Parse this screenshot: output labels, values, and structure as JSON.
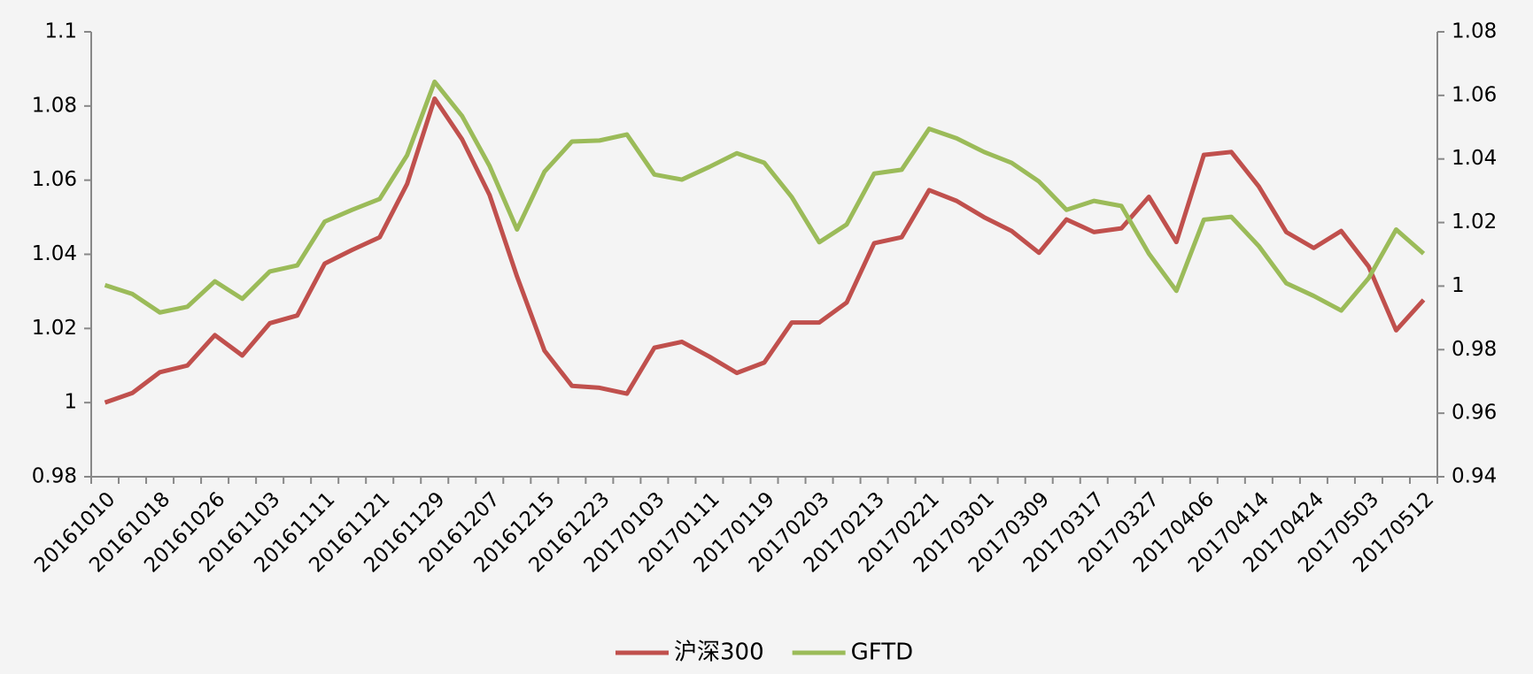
{
  "chart_data": {
    "type": "line",
    "categories": [
      "20161010",
      null,
      "20161018",
      null,
      "20161026",
      null,
      "20161103",
      null,
      "20161111",
      null,
      "20161121",
      null,
      "20161129",
      null,
      "20161207",
      null,
      "20161215",
      null,
      "20161223",
      null,
      "20170103",
      null,
      "20170111",
      null,
      "20170119",
      null,
      "20170203",
      null,
      "20170213",
      null,
      "20170221",
      null,
      "20170301",
      null,
      "20170309",
      null,
      "20170317",
      null,
      "20170327",
      null,
      "20170406",
      null,
      "20170414",
      null,
      "20170424",
      null,
      "20170503",
      null,
      "20170512"
    ],
    "series": [
      {
        "name": "沪深300",
        "color": "#c0504d",
        "values": [
          1.0,
          1.0026,
          1.0082,
          1.01,
          1.0182,
          1.0127,
          1.0214,
          1.0235,
          1.0375,
          1.0412,
          1.0446,
          1.059,
          1.082,
          1.071,
          1.056,
          1.034,
          1.014,
          1.0045,
          1.004,
          1.0024,
          1.0148,
          1.0164,
          1.0124,
          1.008,
          1.0108,
          1.0216,
          1.0216,
          1.027,
          1.043,
          1.0446,
          1.0573,
          1.0544,
          1.05,
          1.0463,
          1.0404,
          1.0494,
          1.046,
          1.047,
          1.0555,
          1.0433,
          1.0668,
          1.0676,
          1.0583,
          1.046,
          1.0417,
          1.0463,
          1.0367,
          1.0195,
          1.0277
        ]
      },
      {
        "name": "GFTD",
        "color": "#9bbb59",
        "axis": "y2",
        "values": [
          1.0003,
          0.9975,
          0.9917,
          0.9935,
          1.0015,
          0.996,
          1.0046,
          1.0065,
          1.0203,
          1.024,
          1.0274,
          1.0412,
          1.0643,
          1.0535,
          1.0378,
          1.0178,
          1.036,
          1.0455,
          1.0458,
          1.0477,
          1.0351,
          1.0335,
          1.0375,
          1.0418,
          1.0388,
          1.028,
          1.0138,
          1.0194,
          1.0354,
          1.0366,
          1.0495,
          1.0465,
          1.0422,
          1.0388,
          1.0329,
          1.024,
          1.0268,
          1.0252,
          1.0102,
          0.9985,
          1.0209,
          1.0218,
          1.0126,
          1.0009,
          0.9969,
          0.9923,
          1.0025,
          1.0178,
          1.0102
        ]
      }
    ],
    "ylim": [
      0.98,
      1.1
    ],
    "yticks": [
      0.98,
      1,
      1.02,
      1.04,
      1.06,
      1.08,
      1.1
    ],
    "y2lim": [
      0.94,
      1.08
    ],
    "y2ticks": [
      0.94,
      0.96,
      0.98,
      1,
      1.02,
      1.04,
      1.06,
      1.08
    ],
    "legend": "bottom"
  }
}
